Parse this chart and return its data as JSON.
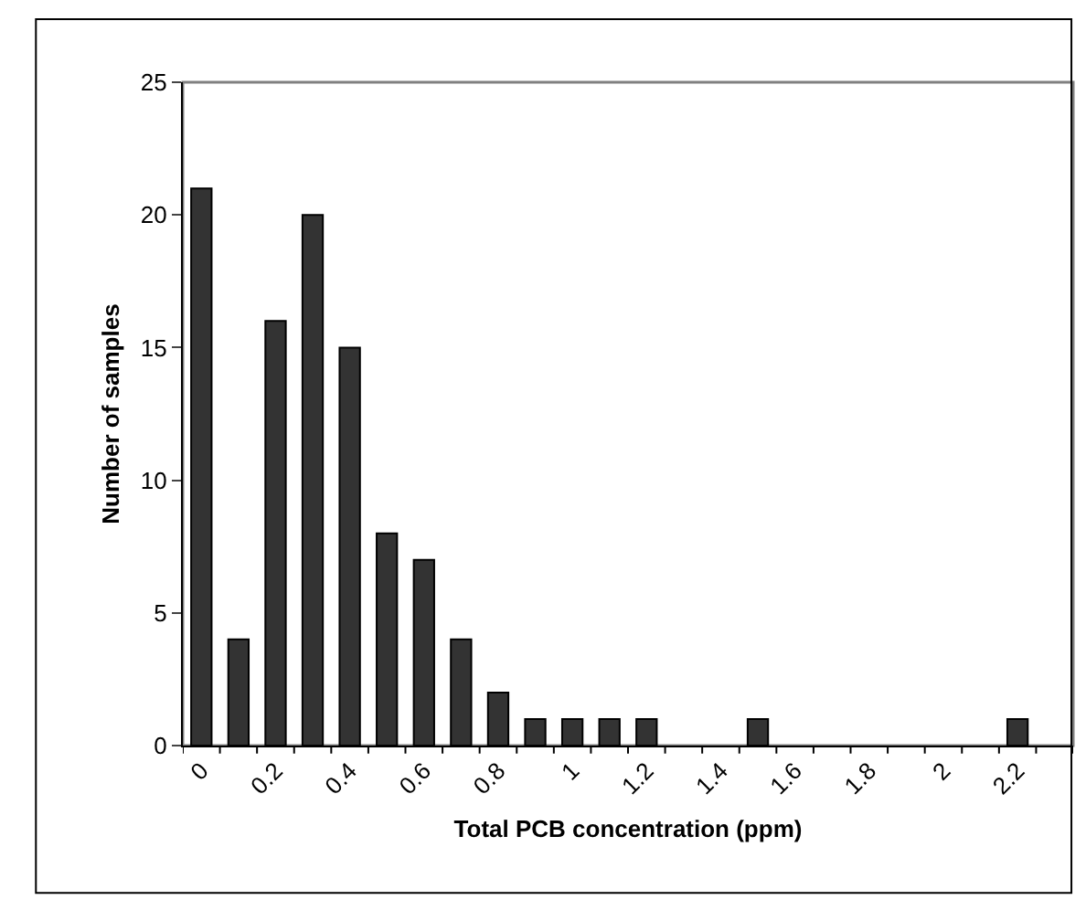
{
  "chart_data": {
    "type": "bar",
    "xlabel": "Total PCB concentration (ppm)",
    "ylabel": "Number of samples",
    "categories": [
      "0",
      null,
      "0.2",
      null,
      "0.4",
      null,
      "0.6",
      null,
      "0.8",
      null,
      "1",
      null,
      "1.2",
      null,
      "1.4",
      null,
      "1.6",
      null,
      "1.8",
      null,
      "2",
      null,
      "2.2",
      null
    ],
    "values": [
      21,
      4,
      16,
      20,
      15,
      8,
      7,
      4,
      2,
      1,
      1,
      1,
      1,
      0,
      0,
      1,
      0,
      0,
      0,
      0,
      0,
      0,
      1,
      0
    ],
    "color": "#333333",
    "ylim": [
      0,
      25
    ],
    "yticks": [
      0,
      5,
      10,
      15,
      20,
      25
    ],
    "grid": false
  }
}
